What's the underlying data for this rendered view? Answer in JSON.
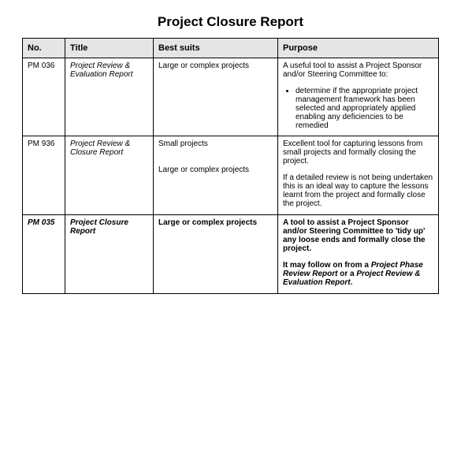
{
  "docTitle": "Project Closure Report",
  "headers": {
    "no": "No.",
    "title": "Title",
    "best": "Best suits",
    "purpose": "Purpose"
  },
  "rows": {
    "r1": {
      "no": "PM 036",
      "title": "Project Review & Evaluation Report",
      "best": "Large or complex projects",
      "purposeIntro": "A useful tool to assist a Project Sponsor and/or Steering Committee to:",
      "bullet1": "determine if the appropriate project management framework has been selected and appropriately applied enabling any deficiencies to be remedied"
    },
    "r2": {
      "no": "PM 936",
      "title": "Project Review & Closure Report",
      "best1": "Small projects",
      "best2": "Large or complex projects",
      "p1": "Excellent tool for capturing lessons from small projects and formally closing the project.",
      "p2": "If a detailed review is not being undertaken this is an ideal way to capture the lessons learnt from the project and formally close the project."
    },
    "r3": {
      "no": "PM 035",
      "title": "Project Closure Report",
      "best": "Large or complex projects",
      "p1": "A tool to assist a Project Sponsor and/or Steering Committee to 'tidy up' any loose ends and formally close the project.",
      "p2a": "It may follow on from a ",
      "p2b": "Project Phase Review Report",
      "p2c": " or a ",
      "p2d": "Project Review & Evaluation Report",
      "p2e": "."
    }
  }
}
